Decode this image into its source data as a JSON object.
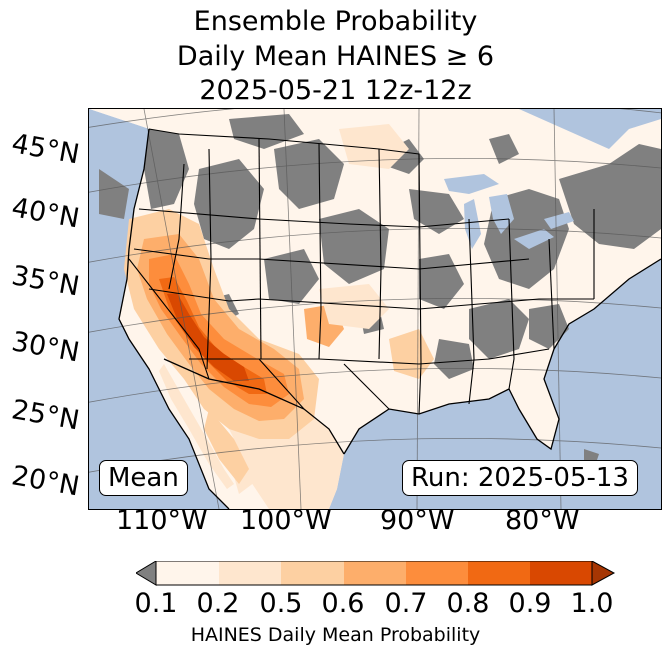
{
  "title": {
    "line1": "Ensemble Probability",
    "line2": "Daily Mean HAINES ≥ 6",
    "line3": "2025-05-21 12z-12z"
  },
  "lat_labels": [
    "45°N",
    "40°N",
    "35°N",
    "30°N",
    "25°N",
    "20°N"
  ],
  "lon_labels": [
    "110°W",
    "100°W",
    "90°W",
    "80°W"
  ],
  "badges": {
    "mean": "Mean",
    "run": "Run: 2025-05-13"
  },
  "colorbar": {
    "ticks": [
      "0.1",
      "0.2",
      "0.5",
      "0.6",
      "0.7",
      "0.8",
      "0.9",
      "1.0"
    ],
    "label": "HAINES Daily Mean Probability",
    "colors": [
      "#fff5eb",
      "#fee6ce",
      "#fdd0a2",
      "#fdae6b",
      "#fd8d3c",
      "#f16913",
      "#d94801"
    ],
    "under_color": "#808080",
    "over_color": "#a63603"
  },
  "colors": {
    "ocean": "#b0c4de",
    "no_data": "#808080",
    "land_low": "#fff5eb"
  }
}
